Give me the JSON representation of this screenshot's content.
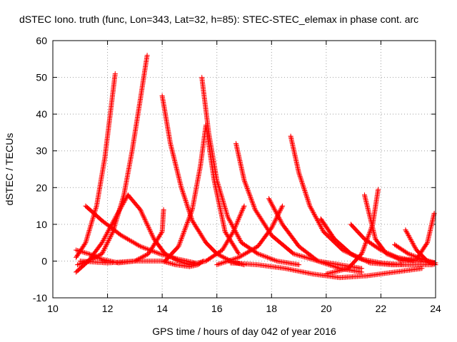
{
  "chart_data": {
    "type": "scatter",
    "title": "dSTEC Iono. truth (func, Lon=343, Lat=32, h=85): STEC-STEC_elemax in phase cont. arc",
    "xlabel": "GPS time / hours of day 042 of year 2016",
    "ylabel": "dSTEC  / TECUs",
    "xlim": [
      10,
      24
    ],
    "ylim": [
      -10,
      60
    ],
    "xticks": [
      10,
      12,
      14,
      16,
      18,
      20,
      22,
      24
    ],
    "yticks": [
      -10,
      0,
      10,
      20,
      30,
      40,
      50,
      60
    ],
    "grid": true,
    "marker": "+",
    "color": "#ff0000",
    "series": [
      {
        "x": [
          10.85,
          11.2,
          11.6,
          11.9,
          12.1,
          12.28
        ],
        "y": [
          1,
          5,
          15,
          28,
          40,
          51
        ]
      },
      {
        "x": [
          10.9,
          11.3,
          11.8,
          12.2,
          12.6,
          12.9,
          13.2,
          13.45
        ],
        "y": [
          -1,
          0,
          2,
          8,
          18,
          30,
          44,
          56
        ]
      },
      {
        "x": [
          10.85,
          11.3,
          11.8,
          12.3,
          12.75,
          13.2,
          13.7,
          14.1,
          14.6,
          15.0
        ],
        "y": [
          -3,
          0,
          5,
          12,
          18,
          14,
          6,
          2,
          0,
          -1
        ]
      },
      {
        "x": [
          10.85,
          11.3,
          11.8,
          12.4,
          13.0,
          13.5,
          14.0,
          14.05
        ],
        "y": [
          3,
          2,
          0.5,
          -0.5,
          0,
          2,
          8,
          14
        ]
      },
      {
        "x": [
          11.2,
          11.8,
          12.5,
          13.2,
          13.9,
          14.6,
          15.2
        ],
        "y": [
          15,
          11,
          7,
          4,
          2,
          0.5,
          -0.5
        ]
      },
      {
        "x": [
          11.0,
          12.0,
          13.0,
          14.0,
          14.5,
          15.0,
          15.3,
          15.5
        ],
        "y": [
          0,
          -0.5,
          0,
          0,
          -1,
          -1.5,
          -1,
          0
        ]
      },
      {
        "x": [
          14.0,
          14.3,
          14.7,
          15.1,
          15.6,
          16.0,
          16.5,
          17.0
        ],
        "y": [
          45,
          32,
          20,
          11,
          5,
          2,
          0,
          -1
        ]
      },
      {
        "x": [
          14.1,
          14.6,
          15.1,
          15.4,
          15.6,
          15.9,
          16.3,
          16.8
        ],
        "y": [
          0,
          4,
          14,
          26,
          37,
          22,
          8,
          2
        ]
      },
      {
        "x": [
          15.45,
          15.7,
          16.0,
          16.4,
          16.9,
          17.5,
          18.2,
          19.0
        ],
        "y": [
          50,
          35,
          22,
          12,
          5,
          2,
          0,
          -1
        ]
      },
      {
        "x": [
          15.0,
          15.6,
          16.2,
          16.6,
          17.0
        ],
        "y": [
          -1,
          0,
          3,
          8,
          15
        ]
      },
      {
        "x": [
          16.7,
          17.0,
          17.4,
          18.0,
          18.8,
          19.7,
          20.5,
          21.3
        ],
        "y": [
          32,
          22,
          14,
          7,
          2,
          0,
          -1,
          -2
        ]
      },
      {
        "x": [
          16.0,
          16.8,
          17.5,
          18.0,
          18.4
        ],
        "y": [
          -1,
          1,
          4,
          9,
          15
        ]
      },
      {
        "x": [
          17.9,
          18.4,
          19.0,
          19.7,
          20.5,
          21.3
        ],
        "y": [
          17,
          10,
          4,
          0,
          -2,
          -3
        ]
      },
      {
        "x": [
          18.7,
          19.0,
          19.4,
          19.9,
          20.6,
          21.3,
          22.0,
          22.8
        ],
        "y": [
          34,
          24,
          15,
          8,
          3,
          0.5,
          -0.5,
          -1
        ]
      },
      {
        "x": [
          16.5,
          17.5,
          18.5,
          19.5,
          20.5,
          21.5,
          22.5,
          23.5
        ],
        "y": [
          -0.5,
          -1,
          -2,
          -3.5,
          -4.5,
          -4,
          -3,
          -2
        ]
      },
      {
        "x": [
          19.8,
          20.3,
          20.9,
          21.6,
          22.4,
          23.2,
          23.9
        ],
        "y": [
          11.5,
          6,
          2,
          -0.5,
          -1,
          -1,
          -1
        ]
      },
      {
        "x": [
          20.9,
          21.4,
          22.0,
          22.6,
          23.3,
          24.0
        ],
        "y": [
          10,
          6,
          3,
          1,
          0,
          -0.5
        ]
      },
      {
        "x": [
          20.0,
          20.8,
          21.3,
          21.7,
          21.9
        ],
        "y": [
          -3.5,
          -2,
          2,
          10,
          19.5
        ]
      },
      {
        "x": [
          21.4,
          21.6,
          21.8,
          22.2,
          22.7,
          23.2
        ],
        "y": [
          18,
          12,
          6,
          2,
          0.5,
          0
        ]
      },
      {
        "x": [
          22.5,
          23.0,
          23.5,
          24.0
        ],
        "y": [
          4.5,
          2,
          0.5,
          -0.5
        ]
      },
      {
        "x": [
          22.9,
          23.3,
          23.7,
          24.0
        ],
        "y": [
          8.5,
          3,
          0,
          -1
        ]
      },
      {
        "x": [
          22.7,
          23.3,
          23.7,
          23.95
        ],
        "y": [
          0,
          0.5,
          5,
          13
        ]
      }
    ]
  }
}
